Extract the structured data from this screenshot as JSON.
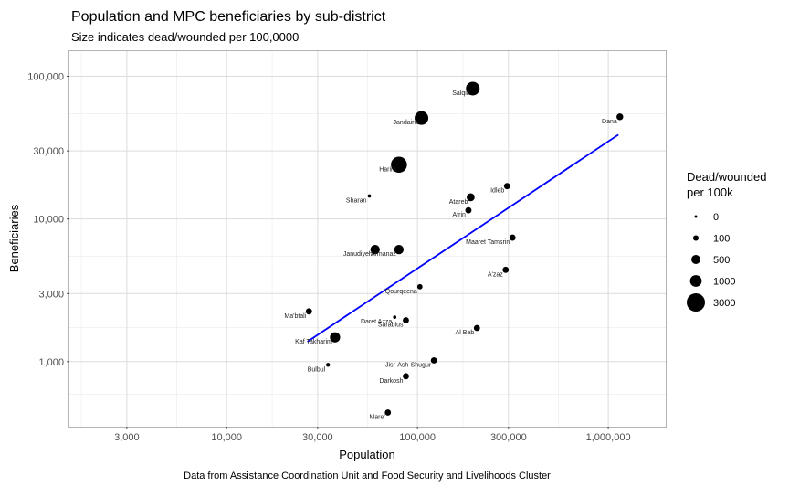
{
  "chart_data": {
    "type": "scatter",
    "title": "Population and MPC beneficiaries by sub-district",
    "subtitle": "Size indicates dead/wounded per 100,0000",
    "xlabel": "Population",
    "ylabel": "Beneficiaries",
    "caption": "Data from Assistance Coordination Unit and Food Security and Livelihoods Cluster",
    "x_scale": "log10",
    "y_scale": "log10",
    "xlim": [
      1500,
      2000000
    ],
    "ylim": [
      350,
      150000
    ],
    "x_ticks": [
      3000,
      10000,
      30000,
      100000,
      300000,
      1000000
    ],
    "x_tick_labels": [
      "3,000",
      "10,000",
      "30,000",
      "100,000",
      "300,000",
      "1,000,000"
    ],
    "y_ticks": [
      1000,
      3000,
      10000,
      30000,
      100000
    ],
    "y_tick_labels": [
      "1,000",
      "3,000",
      "10,000",
      "30,000",
      "100,000"
    ],
    "grid": true,
    "legend": {
      "title_lines": [
        "Dead/wounded",
        "per 100k"
      ],
      "placement": "right",
      "entries": [
        {
          "label": "0",
          "value": 0
        },
        {
          "label": "100",
          "value": 100
        },
        {
          "label": "500",
          "value": 500
        },
        {
          "label": "1000",
          "value": 1000
        },
        {
          "label": "3000",
          "value": 3000
        }
      ]
    },
    "points": [
      {
        "label": "Salqin",
        "x": 195000,
        "y": 82000,
        "size": 1500
      },
      {
        "label": "Jandairis",
        "x": 105000,
        "y": 51000,
        "size": 1500
      },
      {
        "label": "Dana",
        "x": 1150000,
        "y": 52000,
        "size": 200
      },
      {
        "label": "Harim",
        "x": 80000,
        "y": 24000,
        "size": 2200
      },
      {
        "label": "Idleb",
        "x": 295000,
        "y": 17000,
        "size": 150
      },
      {
        "label": "Sharan",
        "x": 56000,
        "y": 14500,
        "size": 5
      },
      {
        "label": "Atareb",
        "x": 190000,
        "y": 14200,
        "size": 350
      },
      {
        "label": "Afrin",
        "x": 185000,
        "y": 11500,
        "size": 150
      },
      {
        "label": "Maaret Tamsrin",
        "x": 315000,
        "y": 7400,
        "size": 150
      },
      {
        "label": "Janudiyeh",
        "x": 60000,
        "y": 6100,
        "size": 550
      },
      {
        "label": "Armanaz",
        "x": 80000,
        "y": 6100,
        "size": 550
      },
      {
        "label": "A'zaz",
        "x": 290000,
        "y": 4400,
        "size": 150
      },
      {
        "label": "Qourqeena",
        "x": 103000,
        "y": 3350,
        "size": 80
      },
      {
        "label": "Ma'btali",
        "x": 27000,
        "y": 2250,
        "size": 150
      },
      {
        "label": "Daret Azza",
        "x": 76000,
        "y": 2050,
        "size": 5
      },
      {
        "label": "Sarablus",
        "x": 87000,
        "y": 1950,
        "size": 150
      },
      {
        "label": "Al Bab",
        "x": 205000,
        "y": 1720,
        "size": 150
      },
      {
        "label": "Kaf Takharim",
        "x": 37000,
        "y": 1480,
        "size": 700
      },
      {
        "label": "Jisr-Ash-Shugur",
        "x": 122000,
        "y": 1020,
        "size": 150
      },
      {
        "label": "Bulbul",
        "x": 34000,
        "y": 950,
        "size": 20
      },
      {
        "label": "Darkosh",
        "x": 87000,
        "y": 790,
        "size": 150
      },
      {
        "label": "Mare'",
        "x": 70000,
        "y": 440,
        "size": 150
      }
    ],
    "trend_line": {
      "color": "#0000ff",
      "points": [
        [
          26500,
          1380
        ],
        [
          1130000,
          39000
        ]
      ]
    }
  }
}
